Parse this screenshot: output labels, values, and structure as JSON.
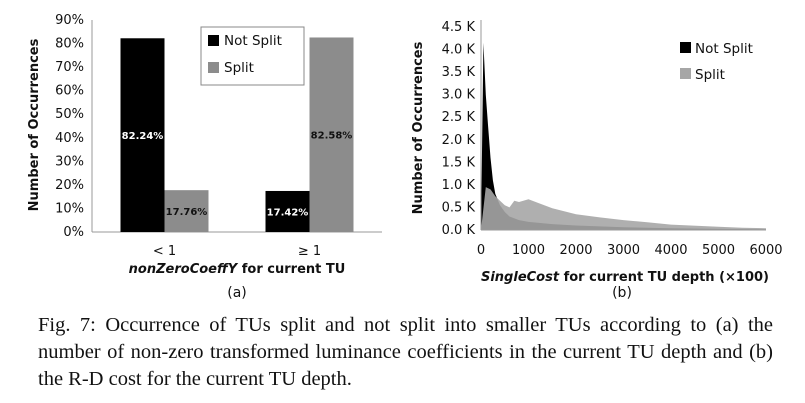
{
  "chart_data": [
    {
      "type": "bar",
      "panel": "(a)",
      "categories": [
        "< 1",
        "≥ 1"
      ],
      "series": [
        {
          "name": "Not Split",
          "values": [
            82.24,
            17.42
          ],
          "labels": [
            "82.24%",
            "17.42%"
          ],
          "color": "#000000"
        },
        {
          "name": "Split",
          "values": [
            17.76,
            82.58
          ],
          "labels": [
            "17.76%",
            "82.58%"
          ],
          "color": "#8c8c8c"
        }
      ],
      "xlabel_italic": "nonZeroCoeffY",
      "xlabel_rest": " for current TU",
      "ylabel": "Number of Occurrences",
      "ylim": [
        0,
        90
      ],
      "yticks": [
        "0%",
        "10%",
        "20%",
        "30%",
        "40%",
        "50%",
        "60%",
        "70%",
        "80%",
        "90%"
      ],
      "grid": false,
      "legend": "top-right"
    },
    {
      "type": "area",
      "panel": "(b)",
      "series": [
        {
          "name": "Not Split",
          "color": "#000000",
          "x": [
            0,
            50,
            100,
            150,
            200,
            250,
            300,
            400,
            500,
            600,
            800,
            1000,
            1500,
            2000,
            3000,
            4000,
            5000,
            6000
          ],
          "y": [
            0,
            4150,
            3000,
            2300,
            1600,
            1100,
            800,
            550,
            400,
            300,
            220,
            180,
            130,
            100,
            60,
            40,
            25,
            15
          ]
        },
        {
          "name": "Split",
          "color": "#a6a6a6",
          "x": [
            0,
            100,
            200,
            300,
            400,
            500,
            600,
            700,
            800,
            1000,
            1200,
            1500,
            2000,
            2500,
            3000,
            3500,
            4000,
            5000,
            5500,
            6000
          ],
          "y": [
            0,
            950,
            900,
            750,
            650,
            550,
            500,
            650,
            620,
            680,
            600,
            480,
            350,
            280,
            220,
            170,
            120,
            70,
            50,
            40
          ]
        }
      ],
      "xlabel_italic": "SingleCost",
      "xlabel_rest": " for current TU depth (×100)",
      "ylabel": "Number of Occurrences",
      "xlim": [
        0,
        6000
      ],
      "ylim": [
        0,
        4500
      ],
      "xticks": [
        "0",
        "1000",
        "2000",
        "3000",
        "4000",
        "5000",
        "6000"
      ],
      "yticks": [
        "0.0 K",
        "0.5 K",
        "1.0 K",
        "1.5 K",
        "2.0 K",
        "2.5 K",
        "3.0 K",
        "3.5 K",
        "4.0 K",
        "4.5 K"
      ],
      "grid": false,
      "legend": "top-right"
    }
  ],
  "caption": "Fig. 7: Occurrence of TUs split and not split into smaller TUs according to (a) the number of non-zero transformed luminance coefficients in the current TU depth and (b) the R-D cost for the current TU depth."
}
